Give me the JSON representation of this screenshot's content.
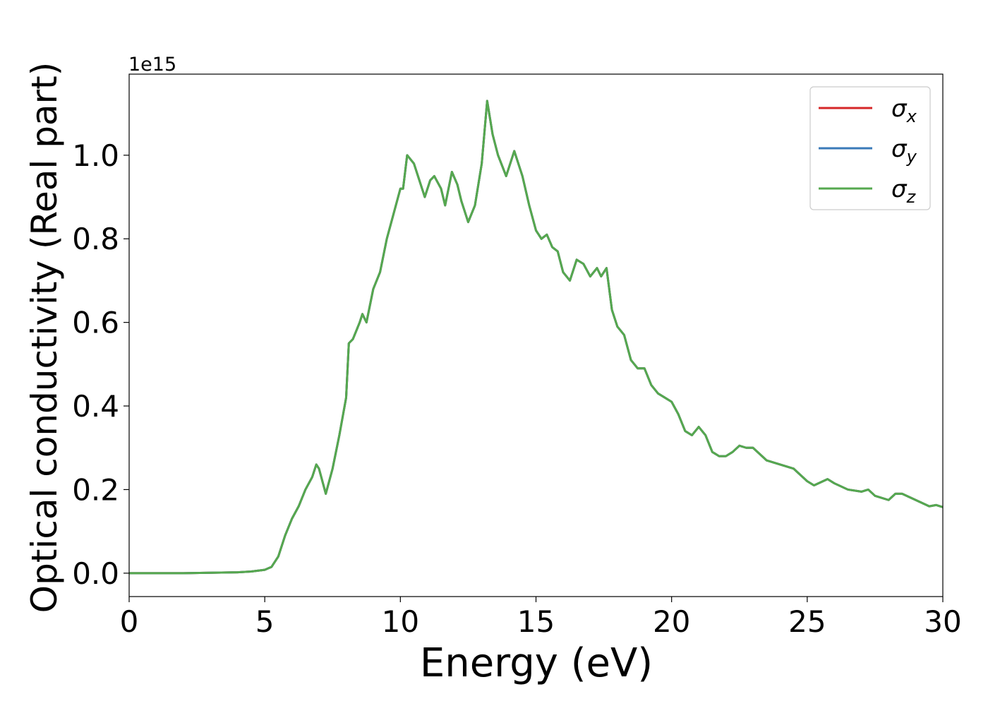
{
  "chart_data": {
    "type": "line",
    "xlabel": "Energy (eV)",
    "ylabel": "Optical conductivity (Real part)",
    "y_offset_label": "1e15",
    "xlim": [
      0,
      30
    ],
    "ylim": [
      -0.056,
      1.194
    ],
    "xticks": [
      0,
      5,
      10,
      15,
      20,
      25,
      30
    ],
    "yticks": [
      {
        "value": 0,
        "label": "0.0"
      },
      {
        "value": 0.2,
        "label": "0.2"
      },
      {
        "value": 0.4,
        "label": "0.4"
      },
      {
        "value": 0.6,
        "label": "0.6"
      },
      {
        "value": 0.8,
        "label": "0.8"
      },
      {
        "value": 1.0,
        "label": "1.0"
      }
    ],
    "grid": false,
    "legend": "upper right",
    "x": [
      0,
      1,
      2,
      3,
      4,
      4.5,
      5,
      5.25,
      5.5,
      5.75,
      6,
      6.25,
      6.5,
      6.75,
      6.9,
      7.0,
      7.25,
      7.5,
      7.75,
      8,
      8.1,
      8.25,
      8.5,
      8.6,
      8.75,
      9,
      9.25,
      9.5,
      9.75,
      10,
      10.1,
      10.25,
      10.5,
      10.75,
      10.9,
      11.1,
      11.25,
      11.5,
      11.65,
      11.9,
      12.1,
      12.25,
      12.5,
      12.75,
      13,
      13.2,
      13.4,
      13.6,
      13.9,
      14.2,
      14.5,
      14.75,
      15,
      15.2,
      15.4,
      15.6,
      15.8,
      16,
      16.25,
      16.5,
      16.75,
      17,
      17.25,
      17.4,
      17.6,
      17.8,
      18,
      18.25,
      18.5,
      18.75,
      19,
      19.25,
      19.5,
      19.75,
      20,
      20.25,
      20.5,
      20.75,
      21,
      21.25,
      21.5,
      21.75,
      22,
      22.25,
      22.5,
      22.75,
      23,
      23.25,
      23.5,
      24,
      24.5,
      25,
      25.25,
      25.75,
      26,
      26.5,
      27,
      27.25,
      27.5,
      28,
      28.25,
      28.5,
      29,
      29.5,
      29.75,
      30
    ],
    "series": [
      {
        "name": "σx",
        "color": "#d62728",
        "values": [
          0,
          0,
          0,
          0.001,
          0.002,
          0.004,
          0.008,
          0.015,
          0.04,
          0.09,
          0.13,
          0.16,
          0.2,
          0.23,
          0.26,
          0.25,
          0.19,
          0.25,
          0.33,
          0.42,
          0.55,
          0.56,
          0.6,
          0.62,
          0.6,
          0.68,
          0.72,
          0.8,
          0.86,
          0.92,
          0.92,
          1.0,
          0.98,
          0.93,
          0.9,
          0.94,
          0.95,
          0.92,
          0.88,
          0.96,
          0.93,
          0.89,
          0.84,
          0.88,
          0.98,
          1.13,
          1.05,
          1.0,
          0.95,
          1.01,
          0.95,
          0.88,
          0.82,
          0.8,
          0.81,
          0.78,
          0.77,
          0.72,
          0.7,
          0.75,
          0.74,
          0.71,
          0.73,
          0.71,
          0.73,
          0.63,
          0.59,
          0.57,
          0.51,
          0.49,
          0.49,
          0.45,
          0.43,
          0.42,
          0.41,
          0.38,
          0.34,
          0.33,
          0.35,
          0.33,
          0.29,
          0.28,
          0.28,
          0.29,
          0.305,
          0.3,
          0.3,
          0.285,
          0.27,
          0.26,
          0.25,
          0.22,
          0.21,
          0.225,
          0.215,
          0.2,
          0.195,
          0.2,
          0.185,
          0.175,
          0.19,
          0.19,
          0.175,
          0.16,
          0.163,
          0.158
        ]
      },
      {
        "name": "σy",
        "color": "#3a7ab8",
        "values": [
          0,
          0,
          0,
          0.001,
          0.002,
          0.004,
          0.008,
          0.015,
          0.04,
          0.09,
          0.13,
          0.16,
          0.2,
          0.23,
          0.26,
          0.25,
          0.19,
          0.25,
          0.33,
          0.42,
          0.55,
          0.56,
          0.6,
          0.62,
          0.6,
          0.68,
          0.72,
          0.8,
          0.86,
          0.92,
          0.92,
          1.0,
          0.98,
          0.93,
          0.9,
          0.94,
          0.95,
          0.92,
          0.88,
          0.96,
          0.93,
          0.89,
          0.84,
          0.88,
          0.98,
          1.13,
          1.05,
          1.0,
          0.95,
          1.01,
          0.95,
          0.88,
          0.82,
          0.8,
          0.81,
          0.78,
          0.77,
          0.72,
          0.7,
          0.75,
          0.74,
          0.71,
          0.73,
          0.71,
          0.73,
          0.63,
          0.59,
          0.57,
          0.51,
          0.49,
          0.49,
          0.45,
          0.43,
          0.42,
          0.41,
          0.38,
          0.34,
          0.33,
          0.35,
          0.33,
          0.29,
          0.28,
          0.28,
          0.29,
          0.305,
          0.3,
          0.3,
          0.285,
          0.27,
          0.26,
          0.25,
          0.22,
          0.21,
          0.225,
          0.215,
          0.2,
          0.195,
          0.2,
          0.185,
          0.175,
          0.19,
          0.19,
          0.175,
          0.16,
          0.163,
          0.158
        ]
      },
      {
        "name": "σz",
        "color": "#55a84f",
        "values": [
          0,
          0,
          0,
          0.001,
          0.002,
          0.004,
          0.008,
          0.015,
          0.04,
          0.09,
          0.13,
          0.16,
          0.2,
          0.23,
          0.26,
          0.25,
          0.19,
          0.25,
          0.33,
          0.42,
          0.55,
          0.56,
          0.6,
          0.62,
          0.6,
          0.68,
          0.72,
          0.8,
          0.86,
          0.92,
          0.92,
          1.0,
          0.98,
          0.93,
          0.9,
          0.94,
          0.95,
          0.92,
          0.88,
          0.96,
          0.93,
          0.89,
          0.84,
          0.88,
          0.98,
          1.13,
          1.05,
          1.0,
          0.95,
          1.01,
          0.95,
          0.88,
          0.82,
          0.8,
          0.81,
          0.78,
          0.77,
          0.72,
          0.7,
          0.75,
          0.74,
          0.71,
          0.73,
          0.71,
          0.73,
          0.63,
          0.59,
          0.57,
          0.51,
          0.49,
          0.49,
          0.45,
          0.43,
          0.42,
          0.41,
          0.38,
          0.34,
          0.33,
          0.35,
          0.33,
          0.29,
          0.28,
          0.28,
          0.29,
          0.305,
          0.3,
          0.3,
          0.285,
          0.27,
          0.26,
          0.25,
          0.22,
          0.21,
          0.225,
          0.215,
          0.2,
          0.195,
          0.2,
          0.185,
          0.175,
          0.19,
          0.19,
          0.175,
          0.16,
          0.163,
          0.158
        ]
      }
    ]
  }
}
